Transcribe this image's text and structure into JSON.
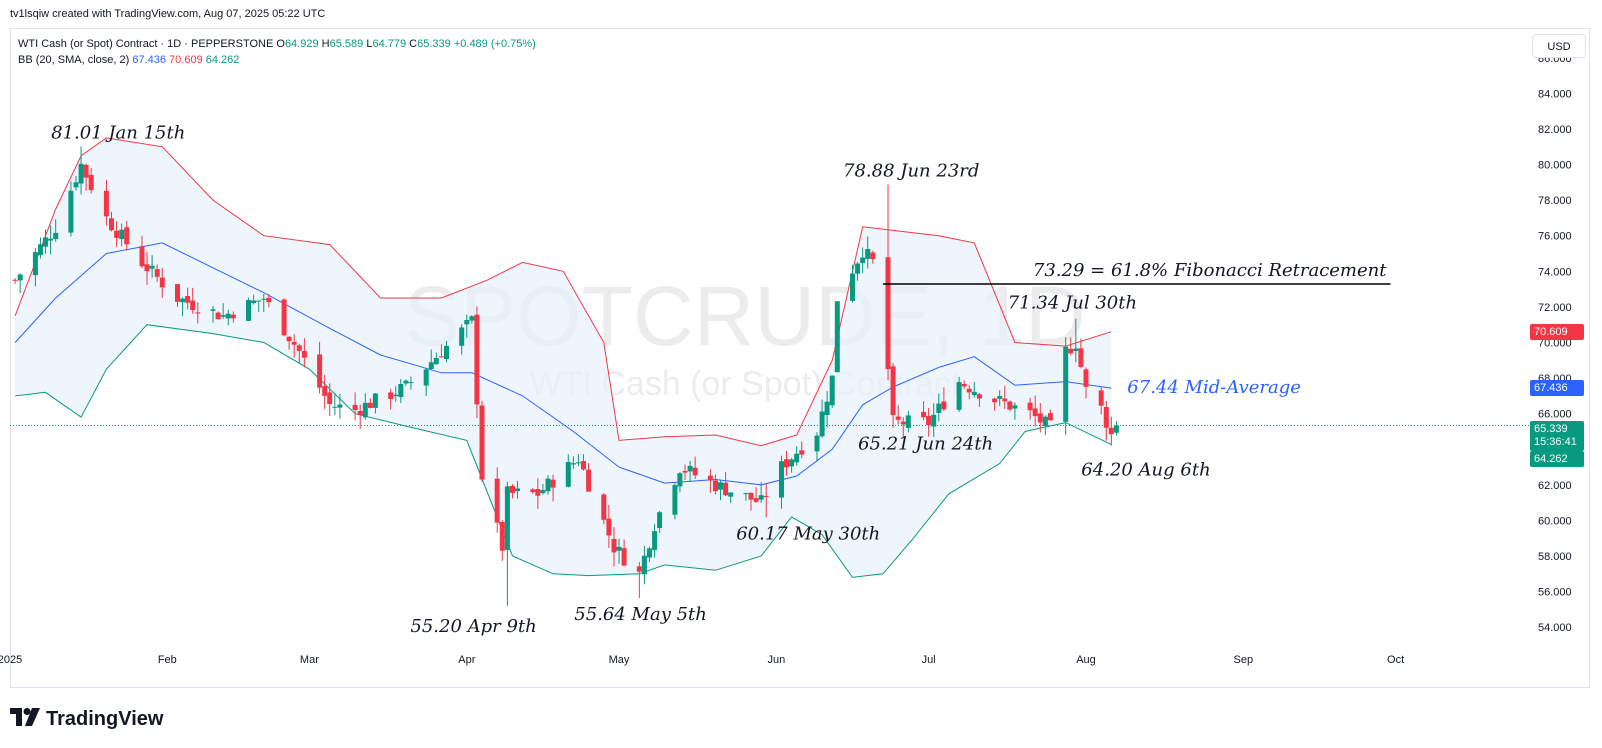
{
  "caption": "tv1lsqiw created with TradingView.com, Aug 07, 2025 05:22 UTC",
  "legend": {
    "instrument": "WTI Cash (or Spot) Contract · 1D · PEPPERSTONE",
    "o_label": "O",
    "o_value": "64.929",
    "h_label": "H",
    "h_value": "65.589",
    "l_label": "L",
    "l_value": "64.779",
    "c_label": "C",
    "c_value": "65.339",
    "change": "+0.489 (+0.75%)",
    "bb_label": "BB (20, SMA, close, 2)",
    "bb_mid": "67.436",
    "bb_upper": "70.609",
    "bb_lower": "64.262"
  },
  "currency_button": "USD",
  "price_tags": {
    "upper": "70.609",
    "mid": "67.436",
    "last": "65.339",
    "countdown": "15:36:41",
    "lower": "64.262"
  },
  "watermark": {
    "symbol": "SPOTCRUDE, 1D",
    "name": "WTI Cash (or Spot) Contract"
  },
  "footer": {
    "brand": "TradingView"
  },
  "colors": {
    "up": "#089981",
    "down": "#f23645",
    "upper_band": "#f23645",
    "mid_band": "#2962ff",
    "lower_band": "#089981",
    "band_fill": "#e8f1fb"
  },
  "chart_data": {
    "type": "candlestick",
    "x_range": [
      "2025-01-01",
      "2025-10-20"
    ],
    "y_range": [
      53,
      87
    ],
    "y_ticks": [
      "86.000",
      "84.000",
      "82.000",
      "80.000",
      "78.000",
      "76.000",
      "74.000",
      "72.000",
      "70.000",
      "68.000",
      "66.000",
      "64.000",
      "62.000",
      "60.000",
      "58.000",
      "56.000",
      "54.000"
    ],
    "x_ticks": [
      {
        "date": "2025-01-01",
        "label": "2025"
      },
      {
        "date": "2025-02-01",
        "label": "Feb"
      },
      {
        "date": "2025-03-01",
        "label": "Mar"
      },
      {
        "date": "2025-04-01",
        "label": "Apr"
      },
      {
        "date": "2025-05-01",
        "label": "May"
      },
      {
        "date": "2025-06-01",
        "label": "Jun"
      },
      {
        "date": "2025-07-01",
        "label": "Jul"
      },
      {
        "date": "2025-08-01",
        "label": "Aug"
      },
      {
        "date": "2025-09-01",
        "label": "Sep"
      },
      {
        "date": "2025-10-01",
        "label": "Oct"
      }
    ],
    "anchor_closes": [
      [
        "2025-01-02",
        73.5
      ],
      [
        "2025-01-10",
        76.5
      ],
      [
        "2025-01-15",
        80.0
      ],
      [
        "2025-01-20",
        77.0
      ],
      [
        "2025-01-27",
        74.5
      ],
      [
        "2025-02-03",
        72.5
      ],
      [
        "2025-02-12",
        71.5
      ],
      [
        "2025-02-20",
        72.5
      ],
      [
        "2025-02-27",
        69.5
      ],
      [
        "2025-03-05",
        66.5
      ],
      [
        "2025-03-10",
        66.2
      ],
      [
        "2025-03-20",
        67.5
      ],
      [
        "2025-03-27",
        69.5
      ],
      [
        "2025-04-02",
        71.2
      ],
      [
        "2025-04-04",
        62.5
      ],
      [
        "2025-04-08",
        58.5
      ],
      [
        "2025-04-09",
        61.5
      ],
      [
        "2025-04-15",
        61.5
      ],
      [
        "2025-04-23",
        63.5
      ],
      [
        "2025-04-30",
        58.5
      ],
      [
        "2025-05-05",
        57.0
      ],
      [
        "2025-05-08",
        59.8
      ],
      [
        "2025-05-13",
        63.0
      ],
      [
        "2025-05-20",
        62.0
      ],
      [
        "2025-05-29",
        61.0
      ],
      [
        "2025-06-02",
        63.0
      ],
      [
        "2025-06-09",
        65.0
      ],
      [
        "2025-06-12",
        68.0
      ],
      [
        "2025-06-13",
        72.5
      ],
      [
        "2025-06-18",
        75.2
      ],
      [
        "2025-06-20",
        74.5
      ],
      [
        "2025-06-23",
        68.5
      ],
      [
        "2025-06-24",
        65.5
      ],
      [
        "2025-07-01",
        65.5
      ],
      [
        "2025-07-07",
        67.8
      ],
      [
        "2025-07-14",
        66.8
      ],
      [
        "2025-07-21",
        66.0
      ],
      [
        "2025-07-25",
        65.2
      ],
      [
        "2025-07-28",
        69.5
      ],
      [
        "2025-07-30",
        70.0
      ],
      [
        "2025-08-01",
        67.3
      ],
      [
        "2025-08-04",
        66.3
      ],
      [
        "2025-08-06",
        64.8
      ],
      [
        "2025-08-07",
        65.339
      ]
    ],
    "bollinger": {
      "period": 20,
      "upper": [
        [
          "2025-01-02",
          71.5
        ],
        [
          "2025-01-10",
          77.5
        ],
        [
          "2025-01-15",
          80.5
        ],
        [
          "2025-01-20",
          81.5
        ],
        [
          "2025-01-31",
          81.0
        ],
        [
          "2025-02-10",
          78.0
        ],
        [
          "2025-02-20",
          76.0
        ],
        [
          "2025-03-05",
          75.5
        ],
        [
          "2025-03-15",
          72.5
        ],
        [
          "2025-03-27",
          72.5
        ],
        [
          "2025-04-05",
          73.5
        ],
        [
          "2025-04-12",
          74.5
        ],
        [
          "2025-04-20",
          74.0
        ],
        [
          "2025-04-28",
          70.0
        ],
        [
          "2025-05-01",
          64.5
        ],
        [
          "2025-05-10",
          64.7
        ],
        [
          "2025-05-20",
          64.8
        ],
        [
          "2025-05-29",
          64.2
        ],
        [
          "2025-06-05",
          64.8
        ],
        [
          "2025-06-12",
          69.0
        ],
        [
          "2025-06-18",
          76.5
        ],
        [
          "2025-06-24",
          76.3
        ],
        [
          "2025-07-03",
          76.0
        ],
        [
          "2025-07-10",
          75.6
        ],
        [
          "2025-07-18",
          70.0
        ],
        [
          "2025-07-28",
          69.8
        ],
        [
          "2025-08-06",
          70.609
        ]
      ],
      "mid": [
        [
          "2025-01-02",
          70.0
        ],
        [
          "2025-01-10",
          72.5
        ],
        [
          "2025-01-20",
          75.0
        ],
        [
          "2025-01-31",
          75.6
        ],
        [
          "2025-02-10",
          74.2
        ],
        [
          "2025-02-20",
          72.8
        ],
        [
          "2025-03-05",
          70.8
        ],
        [
          "2025-03-15",
          69.3
        ],
        [
          "2025-03-27",
          68.3
        ],
        [
          "2025-04-02",
          68.3
        ],
        [
          "2025-04-12",
          67.0
        ],
        [
          "2025-04-22",
          65.0
        ],
        [
          "2025-05-01",
          63.0
        ],
        [
          "2025-05-10",
          62.1
        ],
        [
          "2025-05-20",
          62.3
        ],
        [
          "2025-05-29",
          62.0
        ],
        [
          "2025-06-05",
          62.5
        ],
        [
          "2025-06-12",
          64.0
        ],
        [
          "2025-06-18",
          66.5
        ],
        [
          "2025-06-24",
          67.5
        ],
        [
          "2025-07-03",
          68.6
        ],
        [
          "2025-07-10",
          69.2
        ],
        [
          "2025-07-18",
          67.6
        ],
        [
          "2025-07-28",
          67.8
        ],
        [
          "2025-08-06",
          67.436
        ]
      ],
      "lower": [
        [
          "2025-01-02",
          67.0
        ],
        [
          "2025-01-08",
          67.2
        ],
        [
          "2025-01-15",
          65.8
        ],
        [
          "2025-01-20",
          68.5
        ],
        [
          "2025-01-28",
          71.0
        ],
        [
          "2025-02-10",
          70.5
        ],
        [
          "2025-02-20",
          70.0
        ],
        [
          "2025-03-01",
          68.5
        ],
        [
          "2025-03-10",
          66.0
        ],
        [
          "2025-03-20",
          65.3
        ],
        [
          "2025-04-01",
          64.5
        ],
        [
          "2025-04-10",
          58.0
        ],
        [
          "2025-04-18",
          57.0
        ],
        [
          "2025-04-25",
          56.9
        ],
        [
          "2025-05-05",
          57.0
        ],
        [
          "2025-05-10",
          57.5
        ],
        [
          "2025-05-20",
          57.2
        ],
        [
          "2025-05-29",
          58.0
        ],
        [
          "2025-06-04",
          60.2
        ],
        [
          "2025-06-10",
          59.2
        ],
        [
          "2025-06-16",
          56.8
        ],
        [
          "2025-06-22",
          57.0
        ],
        [
          "2025-06-28",
          59.0
        ],
        [
          "2025-07-05",
          61.5
        ],
        [
          "2025-07-15",
          63.2
        ],
        [
          "2025-07-20",
          65.0
        ],
        [
          "2025-07-28",
          65.5
        ],
        [
          "2025-08-06",
          64.262
        ]
      ]
    },
    "last_price": 65.339,
    "horizontal_lines": [
      {
        "value": 73.29,
        "from": "2025-06-22",
        "to": "2025-09-30",
        "label": "73.29 = 61.8% Fibonacci Retracement"
      }
    ],
    "annotations": [
      {
        "text": "81.01 Jan 15th",
        "date": "2025-01-15",
        "price": 81.01,
        "candle_high": 81.01
      },
      {
        "text": "78.88 Jun 23rd",
        "date": "2025-06-23",
        "price": 78.88,
        "candle_high": 78.88
      },
      {
        "text": "71.34 Jul 30th",
        "date": "2025-07-30",
        "price": 71.34,
        "candle_high": 71.34
      },
      {
        "text": "67.44 Mid-Average",
        "date": "2025-08-06",
        "price": 67.44,
        "style": "blue"
      },
      {
        "text": "65.21 Jun 24th",
        "date": "2025-06-24",
        "price": 65.21,
        "candle_low": 65.21
      },
      {
        "text": "64.20 Aug 6th",
        "date": "2025-08-06",
        "price": 64.2,
        "candle_low": 64.2
      },
      {
        "text": "60.17 May 30th",
        "date": "2025-05-30",
        "price": 60.17,
        "candle_low": 60.17
      },
      {
        "text": "55.64 May 5th",
        "date": "2025-05-05",
        "price": 55.64,
        "candle_low": 55.64
      },
      {
        "text": "55.20 Apr 9th",
        "date": "2025-04-09",
        "price": 55.2,
        "candle_low": 55.2
      }
    ]
  }
}
